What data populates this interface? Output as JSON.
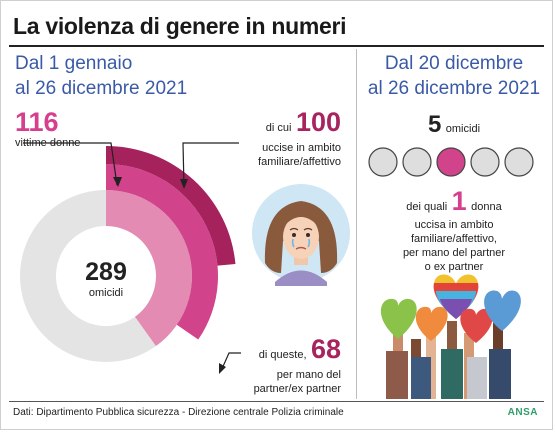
{
  "header": {
    "title": "La violenza di genere in numeri"
  },
  "left": {
    "period_line1": "Dal 1 gennaio",
    "period_line2": "al 26 dicembre 2021",
    "victims_number": "116",
    "victims_label": "vittime donne",
    "family_prefix": "di cui",
    "family_number": "100",
    "family_line1": "uccise in ambito",
    "family_line2": "familiare/affettivo",
    "partner_prefix": "di queste,",
    "partner_number": "68",
    "partner_line1": "per mano del",
    "partner_line2": "partner/ex partner",
    "total_number": "289",
    "total_label": "omicidi"
  },
  "right": {
    "period_line1": "Dal 20 dicembre",
    "period_line2": "al 26 dicembre 2021",
    "homicides_number": "5",
    "homicides_label": "omicidi",
    "women_prefix": "dei quali",
    "women_number": "1",
    "women_suffix": "donna",
    "women_line2": "uccisa in ambito",
    "women_line3": "familiare/affettivo,",
    "women_line4": "per mano del partner",
    "women_line5": "o ex partner"
  },
  "footer": {
    "source": "Dati: Dipartimento Pubblica sicurezza - Direzione centrale Polizia criminale",
    "brand": "ANSA"
  },
  "colors": {
    "grey": "#e4e4e4",
    "light_pink": "#e48bb4",
    "magenta": "#d1438a",
    "plum": "#a5225c"
  },
  "icons": [
    "crying-woman-icon",
    "raised-hearts-icon"
  ],
  "chart_data": [
    {
      "type": "pie",
      "title": "",
      "center_value": 289,
      "center_label": "omicidi",
      "rings": [
        {
          "label": "vittime donne",
          "value": 116,
          "of": 289
        },
        {
          "label": "uccise in ambito familiare/affettivo",
          "value": 100,
          "of": 289
        },
        {
          "label": "per mano del partner/ex partner",
          "value": 68,
          "of": 289
        }
      ]
    },
    {
      "type": "table",
      "title": "",
      "categories": [
        "omicidio 1",
        "omicidio 2",
        "omicidio 3",
        "omicidio 4",
        "omicidio 5"
      ],
      "values": [
        0,
        0,
        1,
        0,
        0
      ],
      "legend": "1 donna uccisa su 5 omicidi"
    }
  ]
}
